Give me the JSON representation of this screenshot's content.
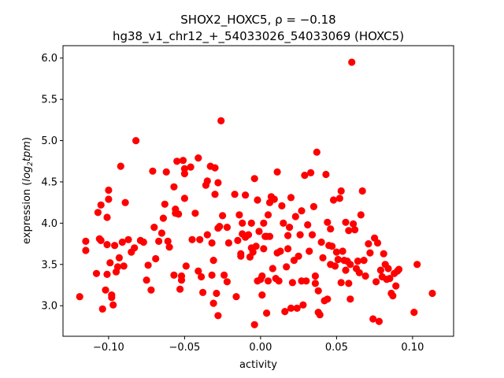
{
  "chart_data": {
    "type": "scatter",
    "title_line1": "SHOX2_HOXC5, ρ = −0.18",
    "title_line2": "hg38_v1_chr12_+_54033026_54033069 (HOXC5)",
    "xlabel": "activity",
    "ylabel_prefix": "expression (",
    "ylabel_math": "log",
    "ylabel_sub": "2",
    "ylabel_math2": "tpm",
    "ylabel_suffix": ")",
    "xlim": [
      -0.13,
      0.127
    ],
    "ylim": [
      2.63,
      6.15
    ],
    "xticks": [
      -0.1,
      -0.05,
      0.0,
      0.05,
      0.1
    ],
    "xtick_labels": [
      "−0.10",
      "−0.05",
      "0.00",
      "0.05",
      "0.10"
    ],
    "yticks": [
      3.0,
      3.5,
      4.0,
      4.5,
      5.0,
      5.5,
      6.0
    ],
    "ytick_labels": [
      "3.0",
      "3.5",
      "4.0",
      "4.5",
      "5.0",
      "5.5",
      "6.0"
    ],
    "marker_color": "#ff0000",
    "grid": false,
    "points": [
      [
        -0.119,
        3.11
      ],
      [
        -0.115,
        3.78
      ],
      [
        -0.115,
        3.67
      ],
      [
        -0.108,
        3.39
      ],
      [
        -0.107,
        4.13
      ],
      [
        -0.106,
        3.81
      ],
      [
        -0.105,
        3.79
      ],
      [
        -0.105,
        4.22
      ],
      [
        -0.104,
        2.96
      ],
      [
        -0.102,
        3.19
      ],
      [
        -0.101,
        3.38
      ],
      [
        -0.101,
        3.74
      ],
      [
        -0.101,
        4.07
      ],
      [
        -0.1,
        4.4
      ],
      [
        -0.1,
        4.29
      ],
      [
        -0.099,
        3.52
      ],
      [
        -0.098,
        3.1
      ],
      [
        -0.098,
        3.13
      ],
      [
        -0.097,
        3.01
      ],
      [
        -0.096,
        3.73
      ],
      [
        -0.095,
        3.41
      ],
      [
        -0.094,
        3.47
      ],
      [
        -0.093,
        3.58
      ],
      [
        -0.092,
        4.69
      ],
      [
        -0.091,
        3.77
      ],
      [
        -0.09,
        3.48
      ],
      [
        -0.089,
        4.25
      ],
      [
        -0.087,
        3.8
      ],
      [
        -0.085,
        3.65
      ],
      [
        -0.083,
        3.7
      ],
      [
        -0.082,
        5.0
      ],
      [
        -0.079,
        3.79
      ],
      [
        -0.077,
        3.77
      ],
      [
        -0.075,
        3.31
      ],
      [
        -0.074,
        3.49
      ],
      [
        -0.072,
        3.19
      ],
      [
        -0.071,
        4.63
      ],
      [
        -0.069,
        3.57
      ],
      [
        -0.067,
        3.78
      ],
      [
        -0.065,
        3.88
      ],
      [
        -0.064,
        4.06
      ],
      [
        -0.063,
        4.23
      ],
      [
        -0.062,
        4.62
      ],
      [
        -0.061,
        3.78
      ],
      [
        -0.06,
        3.71
      ],
      [
        -0.057,
        4.44
      ],
      [
        -0.057,
        3.37
      ],
      [
        -0.056,
        4.12
      ],
      [
        -0.056,
        4.17
      ],
      [
        -0.055,
        4.75
      ],
      [
        -0.054,
        4.11
      ],
      [
        -0.053,
        3.2
      ],
      [
        -0.052,
        3.31
      ],
      [
        -0.052,
        3.36
      ],
      [
        -0.051,
        4.76
      ],
      [
        -0.05,
        4.3
      ],
      [
        -0.05,
        4.6
      ],
      [
        -0.05,
        4.66
      ],
      [
        -0.049,
        3.48
      ],
      [
        -0.046,
        4.68
      ],
      [
        -0.043,
        4.12
      ],
      [
        -0.041,
        4.79
      ],
      [
        -0.041,
        3.42
      ],
      [
        -0.04,
        3.8
      ],
      [
        -0.039,
        3.35
      ],
      [
        -0.038,
        3.16
      ],
      [
        -0.036,
        4.46
      ],
      [
        -0.035,
        4.51
      ],
      [
        -0.035,
        3.86
      ],
      [
        -0.033,
        4.69
      ],
      [
        -0.032,
        3.37
      ],
      [
        -0.032,
        3.76
      ],
      [
        -0.031,
        3.55
      ],
      [
        -0.031,
        3.03
      ],
      [
        -0.03,
        4.67
      ],
      [
        -0.029,
        3.15
      ],
      [
        -0.028,
        2.88
      ],
      [
        -0.028,
        3.94
      ],
      [
        -0.028,
        4.49
      ],
      [
        -0.027,
        3.96
      ],
      [
        -0.026,
        5.24
      ],
      [
        -0.025,
        4.09
      ],
      [
        -0.024,
        3.37
      ],
      [
        -0.022,
        3.29
      ],
      [
        -0.021,
        3.76
      ],
      [
        -0.017,
        4.35
      ],
      [
        -0.016,
        3.11
      ],
      [
        -0.015,
        3.79
      ],
      [
        -0.013,
        3.6
      ],
      [
        -0.013,
        3.63
      ],
      [
        -0.012,
        3.87
      ],
      [
        -0.012,
        4.0
      ],
      [
        -0.01,
        4.34
      ],
      [
        -0.01,
        3.83
      ],
      [
        -0.008,
        3.86
      ],
      [
        -0.007,
        3.59
      ],
      [
        -0.006,
        3.7
      ],
      [
        -0.006,
        4.0
      ],
      [
        -0.005,
        3.65
      ],
      [
        -0.004,
        4.54
      ],
      [
        -0.004,
        2.77
      ],
      [
        -0.003,
        3.72
      ],
      [
        -0.002,
        3.3
      ],
      [
        -0.002,
        4.28
      ],
      [
        -0.001,
        3.9
      ],
      [
        0.0,
        3.32
      ],
      [
        0.001,
        3.36
      ],
      [
        0.001,
        3.13
      ],
      [
        0.002,
        4.0
      ],
      [
        0.002,
        3.69
      ],
      [
        0.003,
        3.84
      ],
      [
        0.004,
        3.84
      ],
      [
        0.004,
        2.91
      ],
      [
        0.005,
        3.3
      ],
      [
        0.006,
        3.84
      ],
      [
        0.006,
        4.25
      ],
      [
        0.007,
        4.32
      ],
      [
        0.008,
        3.45
      ],
      [
        0.009,
        4.29
      ],
      [
        0.01,
        3.33
      ],
      [
        0.011,
        4.62
      ],
      [
        0.011,
        3.64
      ],
      [
        0.012,
        3.3
      ],
      [
        0.013,
        3.66
      ],
      [
        0.014,
        4.21
      ],
      [
        0.015,
        4.0
      ],
      [
        0.016,
        2.93
      ],
      [
        0.017,
        3.47
      ],
      [
        0.018,
        3.69
      ],
      [
        0.019,
        3.95
      ],
      [
        0.02,
        2.97
      ],
      [
        0.02,
        4.31
      ],
      [
        0.021,
        3.28
      ],
      [
        0.022,
        3.55
      ],
      [
        0.023,
        4.08
      ],
      [
        0.024,
        2.97
      ],
      [
        0.025,
        3.6
      ],
      [
        0.026,
        3.86
      ],
      [
        0.027,
        3.3
      ],
      [
        0.028,
        3.01
      ],
      [
        0.029,
        4.58
      ],
      [
        0.03,
        3.3
      ],
      [
        0.031,
        3.98
      ],
      [
        0.032,
        3.66
      ],
      [
        0.033,
        4.61
      ],
      [
        0.034,
        3.86
      ],
      [
        0.035,
        4.2
      ],
      [
        0.036,
        3.36
      ],
      [
        0.036,
        3.27
      ],
      [
        0.037,
        4.86
      ],
      [
        0.038,
        3.18
      ],
      [
        0.038,
        2.92
      ],
      [
        0.039,
        2.89
      ],
      [
        0.04,
        3.77
      ],
      [
        0.041,
        3.58
      ],
      [
        0.042,
        3.06
      ],
      [
        0.043,
        4.59
      ],
      [
        0.044,
        3.08
      ],
      [
        0.044,
        4.01
      ],
      [
        0.045,
        3.73
      ],
      [
        0.046,
        3.93
      ],
      [
        0.047,
        3.72
      ],
      [
        0.048,
        4.28
      ],
      [
        0.049,
        3.48
      ],
      [
        0.05,
        3.65
      ],
      [
        0.051,
        3.56
      ],
      [
        0.052,
        4.3
      ],
      [
        0.053,
        4.39
      ],
      [
        0.053,
        3.28
      ],
      [
        0.054,
        3.66
      ],
      [
        0.055,
        3.55
      ],
      [
        0.056,
        3.43
      ],
      [
        0.056,
        4.01
      ],
      [
        0.057,
        3.54
      ],
      [
        0.058,
        3.27
      ],
      [
        0.058,
        3.91
      ],
      [
        0.059,
        3.08
      ],
      [
        0.059,
        3.5
      ],
      [
        0.06,
        5.95
      ],
      [
        0.061,
        3.99
      ],
      [
        0.062,
        3.92
      ],
      [
        0.063,
        3.45
      ],
      [
        0.064,
        3.54
      ],
      [
        0.065,
        3.4
      ],
      [
        0.066,
        4.1
      ],
      [
        0.067,
        4.39
      ],
      [
        0.069,
        3.36
      ],
      [
        0.071,
        3.75
      ],
      [
        0.072,
        3.64
      ],
      [
        0.074,
        2.84
      ],
      [
        0.075,
        3.82
      ],
      [
        0.076,
        3.29
      ],
      [
        0.077,
        3.76
      ],
      [
        0.078,
        2.81
      ],
      [
        0.079,
        3.43
      ],
      [
        0.08,
        3.35
      ],
      [
        0.081,
        3.63
      ],
      [
        0.082,
        3.5
      ],
      [
        0.083,
        3.32
      ],
      [
        0.084,
        3.45
      ],
      [
        0.085,
        3.33
      ],
      [
        0.086,
        3.15
      ],
      [
        0.087,
        3.12
      ],
      [
        0.088,
        3.39
      ],
      [
        0.089,
        3.24
      ],
      [
        0.09,
        3.42
      ],
      [
        0.091,
        3.44
      ],
      [
        0.101,
        2.92
      ],
      [
        0.103,
        3.5
      ],
      [
        0.113,
        3.15
      ],
      [
        -0.03,
        4.35
      ],
      [
        -0.022,
        3.95
      ],
      [
        0.018,
        3.85
      ],
      [
        0.046,
        3.5
      ],
      [
        -0.045,
        3.8
      ],
      [
        0.005,
        4.1
      ],
      [
        -0.014,
        4.1
      ],
      [
        0.027,
        4.15
      ],
      [
        0.068,
        3.55
      ],
      [
        -0.07,
        3.95
      ]
    ]
  }
}
